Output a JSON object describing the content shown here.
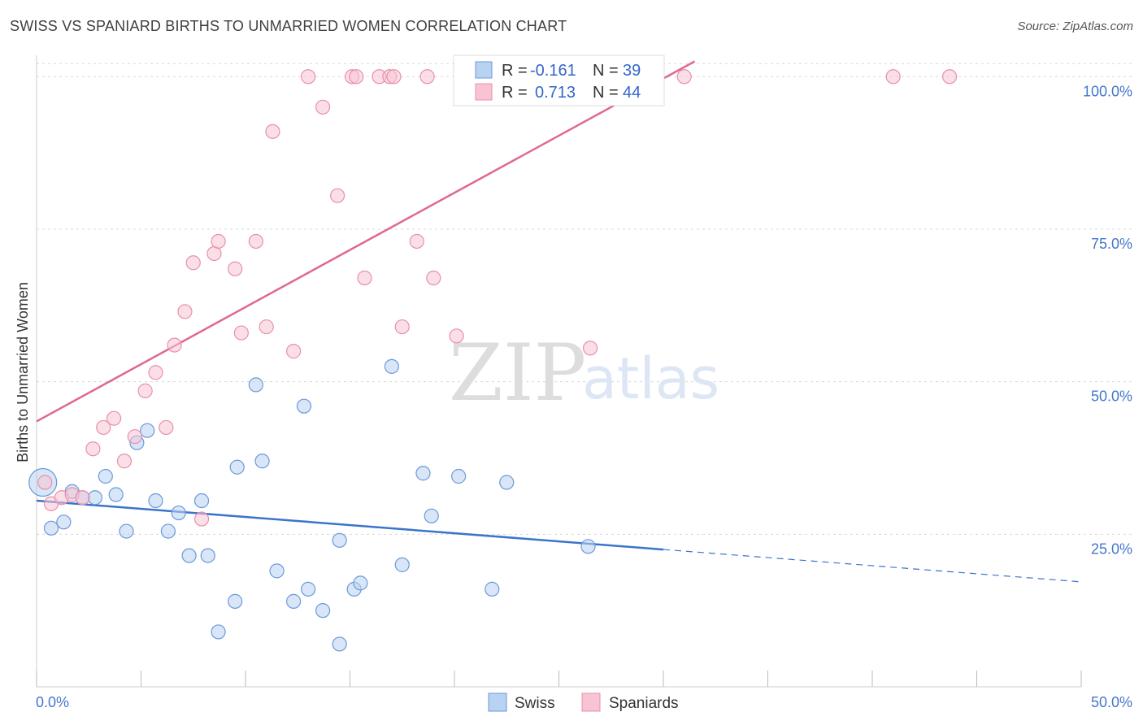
{
  "title": "SWISS VS SPANIARD BIRTHS TO UNMARRIED WOMEN CORRELATION CHART",
  "source": "Source: ZipAtlas.com",
  "watermark": {
    "zip": "ZIP",
    "atlas": "atlas"
  },
  "colors": {
    "swiss_fill": "#b8d2f2",
    "swiss_stroke": "#6a9ad8",
    "swiss_line": "#3a74cc",
    "spaniard_fill": "#f8c4d3",
    "spaniard_stroke": "#e890aa",
    "spaniard_line": "#e06890",
    "tick_label": "#4477cc",
    "grid": "#d8d8d8"
  },
  "legend": {
    "swiss": {
      "r_label": "R = ",
      "r_value": "-0.161",
      "n_label": "N = ",
      "n_value": "39"
    },
    "spaniards": {
      "r_label": "R = ",
      "r_value": "0.713",
      "n_label": "N = ",
      "n_value": "44"
    }
  },
  "chart_data": {
    "type": "scatter",
    "xlabel": "",
    "ylabel": "Births to Unmarried Women",
    "xlim": [
      0,
      50
    ],
    "ylim": [
      0,
      103.5
    ],
    "x_tick_labels": [
      "0.0%",
      "50.0%"
    ],
    "y_ticks": [
      25,
      50,
      75,
      100
    ],
    "y_tick_labels": [
      "25.0%",
      "50.0%",
      "75.0%",
      "100.0%"
    ],
    "grid": true,
    "legend_position": "top-center",
    "series": [
      {
        "name": "Swiss",
        "points": [
          [
            0.3,
            33.5
          ],
          [
            0.7,
            26
          ],
          [
            1.3,
            27
          ],
          [
            1.7,
            32
          ],
          [
            2.2,
            31
          ],
          [
            2.8,
            31
          ],
          [
            3.3,
            34.5
          ],
          [
            3.8,
            31.5
          ],
          [
            4.3,
            25.5
          ],
          [
            4.8,
            40
          ],
          [
            5.3,
            42
          ],
          [
            5.7,
            30.5
          ],
          [
            6.3,
            25.5
          ],
          [
            6.8,
            28.5
          ],
          [
            7.3,
            21.5
          ],
          [
            7.9,
            30.5
          ],
          [
            8.2,
            21.5
          ],
          [
            8.7,
            9
          ],
          [
            9.5,
            14
          ],
          [
            9.6,
            36
          ],
          [
            10.5,
            49.5
          ],
          [
            10.8,
            37
          ],
          [
            11.5,
            19
          ],
          [
            12.3,
            14
          ],
          [
            12.8,
            46
          ],
          [
            13,
            16
          ],
          [
            13.7,
            12.5
          ],
          [
            14.5,
            7
          ],
          [
            14.5,
            24
          ],
          [
            15.2,
            16
          ],
          [
            15.5,
            17
          ],
          [
            17,
            52.5
          ],
          [
            17.5,
            20
          ],
          [
            18.5,
            35
          ],
          [
            18.9,
            28
          ],
          [
            20.2,
            34.5
          ],
          [
            21.8,
            16
          ],
          [
            22.5,
            33.5
          ],
          [
            26.4,
            23
          ]
        ],
        "trend": {
          "x": [
            0,
            30
          ],
          "y": [
            30.5,
            22.5
          ],
          "dashed_to": [
            50,
            17.2
          ]
        }
      },
      {
        "name": "Spaniards",
        "points": [
          [
            0.4,
            33.5
          ],
          [
            0.7,
            30
          ],
          [
            1.2,
            31
          ],
          [
            1.7,
            31.5
          ],
          [
            2.2,
            31
          ],
          [
            2.7,
            39
          ],
          [
            3.2,
            42.5
          ],
          [
            3.7,
            44
          ],
          [
            4.2,
            37
          ],
          [
            4.7,
            41
          ],
          [
            5.2,
            48.5
          ],
          [
            5.7,
            51.5
          ],
          [
            6.2,
            42.5
          ],
          [
            6.6,
            56
          ],
          [
            7.1,
            61.5
          ],
          [
            7.5,
            69.5
          ],
          [
            7.9,
            27.5
          ],
          [
            8.5,
            71
          ],
          [
            8.7,
            73
          ],
          [
            9.5,
            68.5
          ],
          [
            9.8,
            58
          ],
          [
            10.5,
            73
          ],
          [
            11,
            59
          ],
          [
            11.3,
            91
          ],
          [
            12.3,
            55
          ],
          [
            13,
            100
          ],
          [
            13.7,
            95
          ],
          [
            14.4,
            80.5
          ],
          [
            15.1,
            100
          ],
          [
            15.3,
            100
          ],
          [
            15.7,
            67
          ],
          [
            16.4,
            100
          ],
          [
            16.9,
            100
          ],
          [
            17.1,
            100
          ],
          [
            17.5,
            59
          ],
          [
            18.2,
            73
          ],
          [
            18.7,
            100
          ],
          [
            19,
            67
          ],
          [
            20.1,
            57.5
          ],
          [
            23.6,
            100
          ],
          [
            26.5,
            55.5
          ],
          [
            31,
            100
          ],
          [
            41,
            100
          ],
          [
            43.7,
            100
          ]
        ],
        "trend": {
          "x": [
            0,
            31.5
          ],
          "y": [
            43.5,
            102.5
          ]
        }
      }
    ]
  },
  "bottom_legend": [
    {
      "label": "Swiss",
      "color": "#b8d2f2"
    },
    {
      "label": "Spaniards",
      "color": "#f8c4d3"
    }
  ]
}
